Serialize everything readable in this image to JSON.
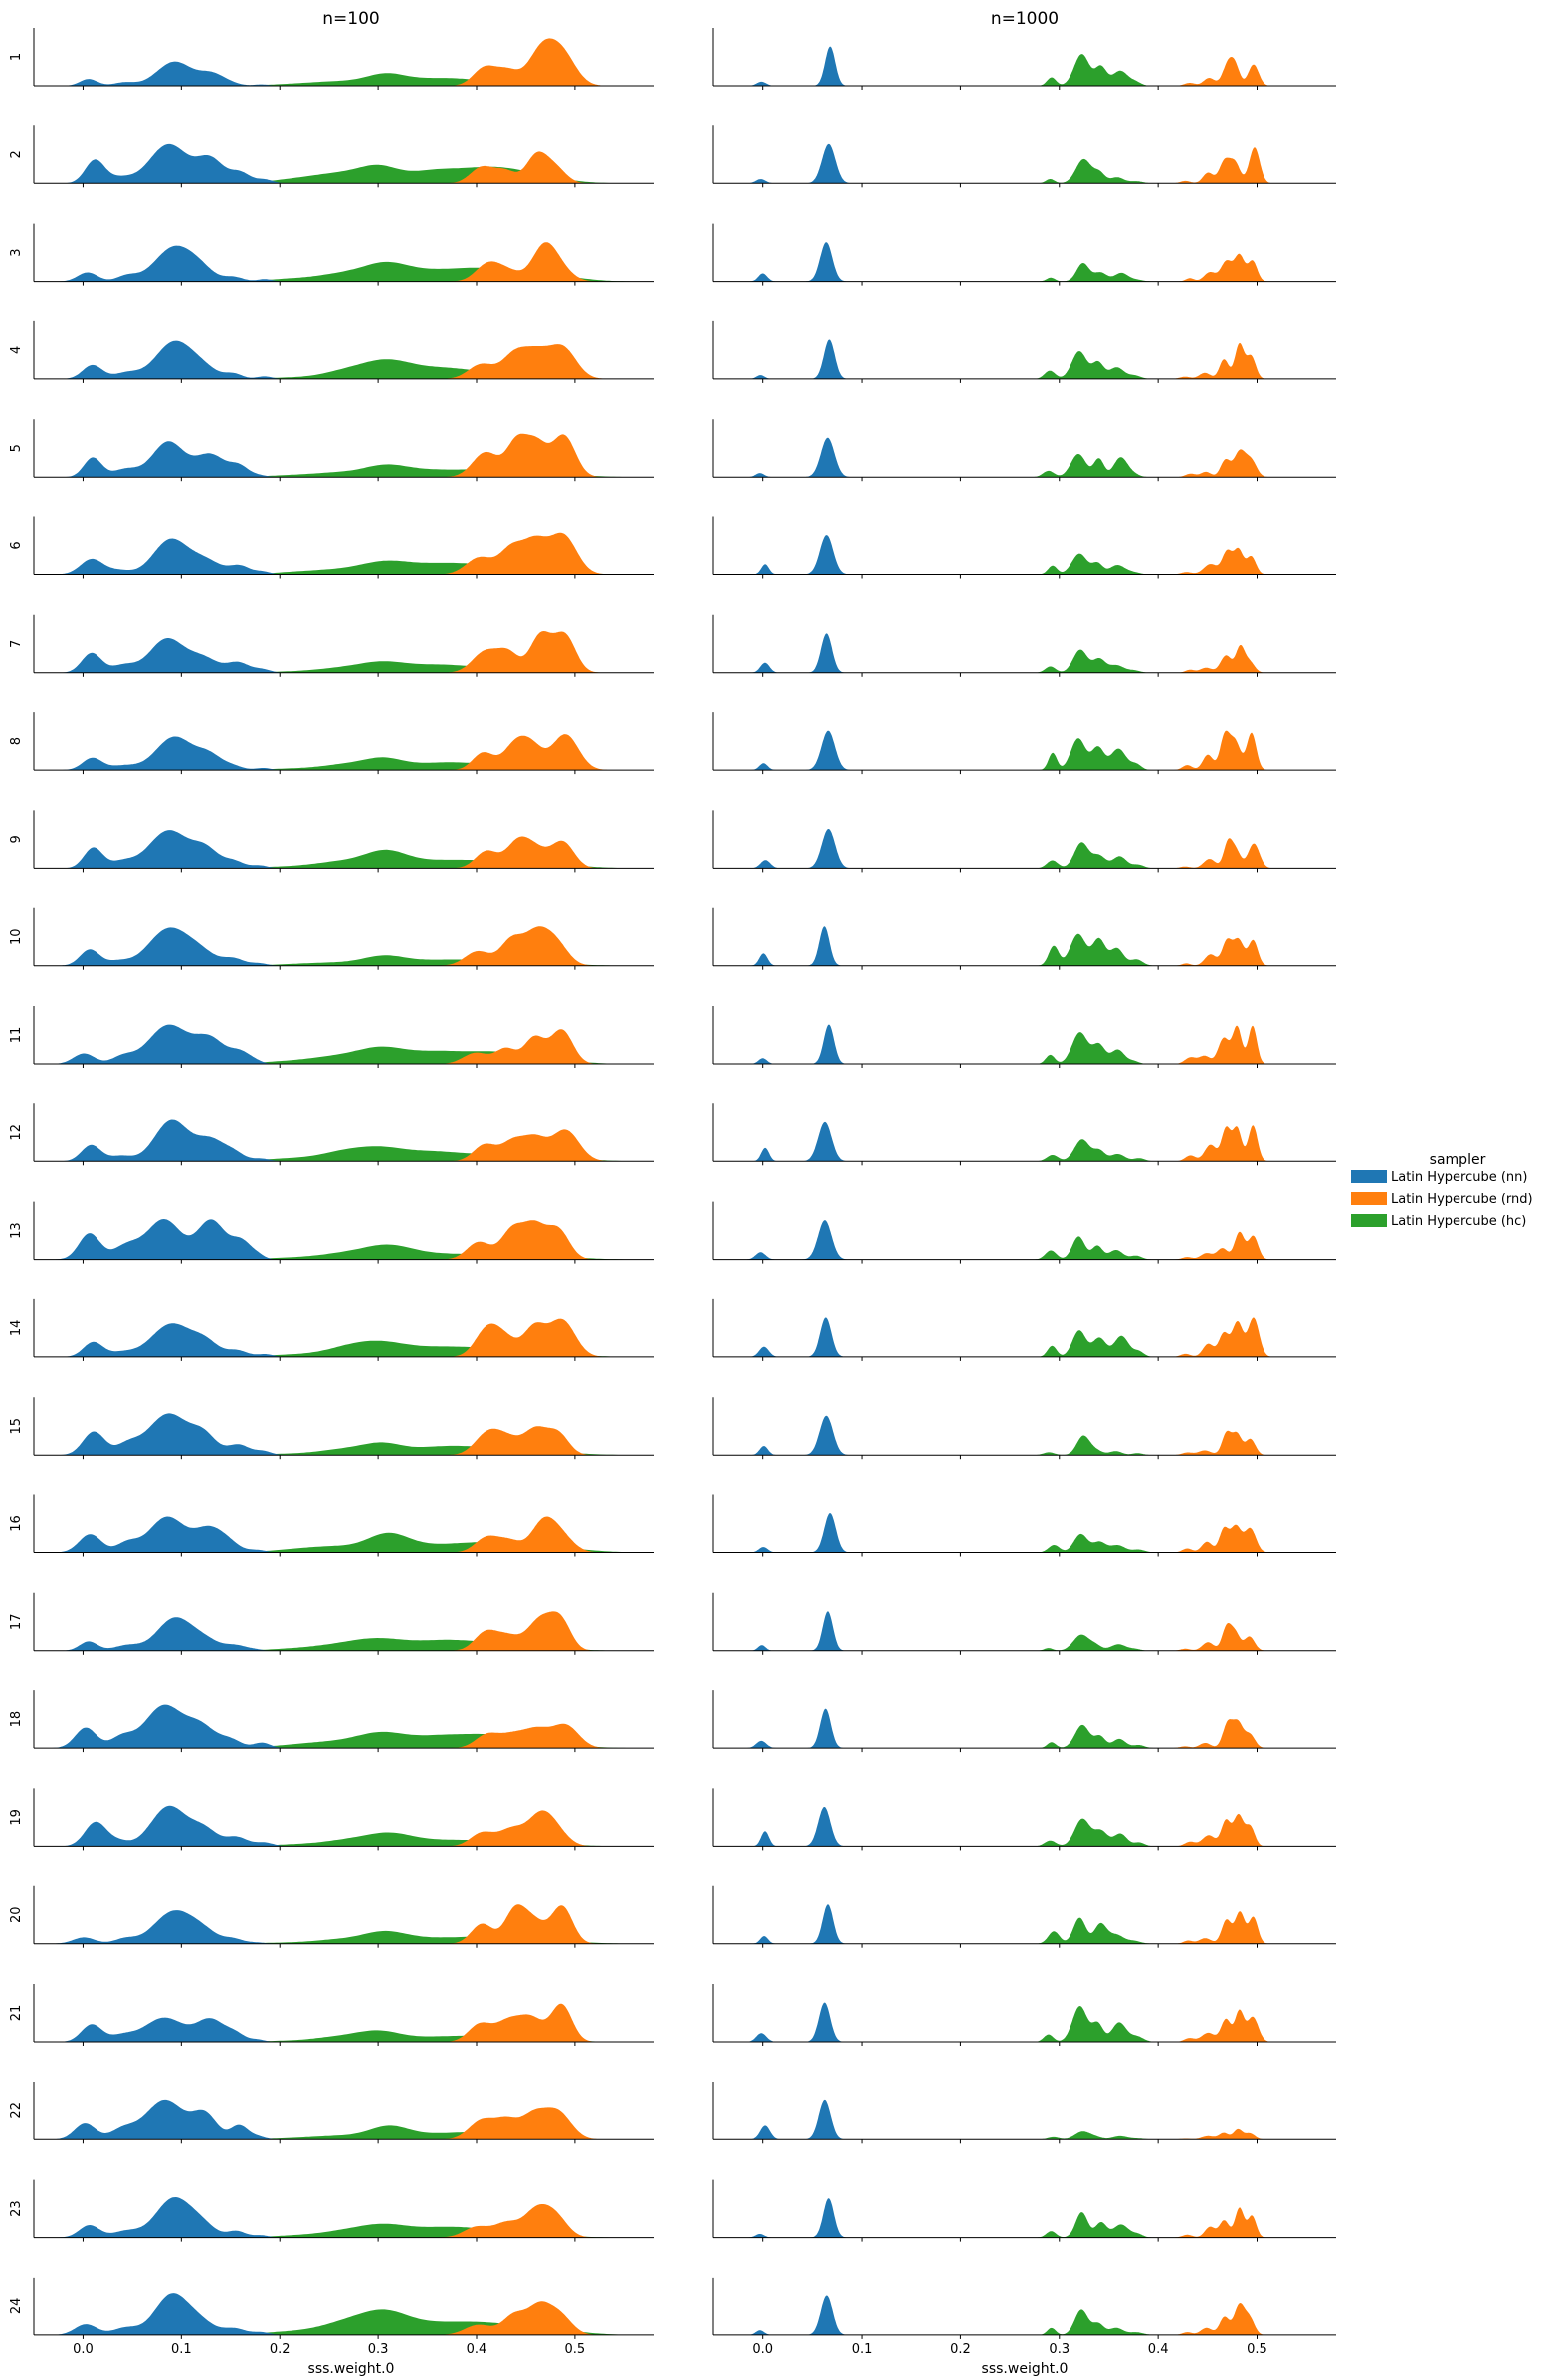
{
  "chart_data": {
    "type": "area",
    "subtype": "ridgeline-kde-facet-grid",
    "column_titles": [
      "n=100",
      "n=1000"
    ],
    "row_labels": [
      "1",
      "2",
      "3",
      "4",
      "5",
      "6",
      "7",
      "8",
      "9",
      "10",
      "11",
      "12",
      "13",
      "14",
      "15",
      "16",
      "17",
      "18",
      "19",
      "20",
      "21",
      "22",
      "23",
      "24"
    ],
    "xlabel": "sss.weight.0",
    "xlim": [
      -0.05,
      0.58
    ],
    "xticks": [
      0.0,
      0.1,
      0.2,
      0.3,
      0.4,
      0.5
    ],
    "xtick_labels": [
      "0.0",
      "0.1",
      "0.2",
      "0.3",
      "0.4",
      "0.5"
    ],
    "legend": {
      "title": "sampler",
      "placement": "center-right",
      "entries": [
        {
          "name": "Latin Hypercube (nn)",
          "color": "#1f77b4"
        },
        {
          "name": "Latin Hypercube (rnd)",
          "color": "#ff7f0e"
        },
        {
          "name": "Latin Hypercube (hc)",
          "color": "#2ca02c"
        }
      ]
    },
    "series_colors": {
      "nn": "#1f77b4",
      "rnd": "#ff7f0e",
      "hc": "#2ca02c"
    },
    "draw_order": [
      "hc",
      "rnd",
      "nn"
    ],
    "series_templates": {
      "n100": {
        "nn": [
          {
            "mu": 0.007,
            "sd": 0.01,
            "h": 0.3
          },
          {
            "mu": 0.04,
            "sd": 0.012,
            "h": 0.12
          },
          {
            "mu": 0.088,
            "sd": 0.018,
            "h": 0.72
          },
          {
            "mu": 0.125,
            "sd": 0.014,
            "h": 0.32
          },
          {
            "mu": 0.155,
            "sd": 0.01,
            "h": 0.14
          },
          {
            "mu": 0.18,
            "sd": 0.008,
            "h": 0.05
          }
        ],
        "rnd": [
          {
            "mu": 0.405,
            "sd": 0.012,
            "h": 0.35
          },
          {
            "mu": 0.435,
            "sd": 0.012,
            "h": 0.45
          },
          {
            "mu": 0.462,
            "sd": 0.012,
            "h": 0.65
          },
          {
            "mu": 0.485,
            "sd": 0.012,
            "h": 0.6
          }
        ],
        "hc": [
          {
            "mu": 0.215,
            "sd": 0.03,
            "h": 0.06
          },
          {
            "mu": 0.265,
            "sd": 0.025,
            "h": 0.18
          },
          {
            "mu": 0.305,
            "sd": 0.022,
            "h": 0.36
          },
          {
            "mu": 0.355,
            "sd": 0.03,
            "h": 0.22
          },
          {
            "mu": 0.41,
            "sd": 0.035,
            "h": 0.22
          },
          {
            "mu": 0.47,
            "sd": 0.03,
            "h": 0.1
          }
        ]
      },
      "n1000": {
        "nn": [
          {
            "mu": 0.0,
            "sd": 0.0045,
            "h": 0.16
          },
          {
            "mu": 0.065,
            "sd": 0.006,
            "h": 0.9
          }
        ],
        "rnd": [
          {
            "mu": 0.43,
            "sd": 0.005,
            "h": 0.08
          },
          {
            "mu": 0.45,
            "sd": 0.006,
            "h": 0.22
          },
          {
            "mu": 0.468,
            "sd": 0.005,
            "h": 0.55
          },
          {
            "mu": 0.48,
            "sd": 0.005,
            "h": 0.62
          },
          {
            "mu": 0.495,
            "sd": 0.005,
            "h": 0.6
          }
        ],
        "hc": [
          {
            "mu": 0.292,
            "sd": 0.005,
            "h": 0.2
          },
          {
            "mu": 0.322,
            "sd": 0.007,
            "h": 0.7
          },
          {
            "mu": 0.34,
            "sd": 0.006,
            "h": 0.35
          },
          {
            "mu": 0.36,
            "sd": 0.007,
            "h": 0.3
          },
          {
            "mu": 0.378,
            "sd": 0.006,
            "h": 0.08
          }
        ]
      }
    },
    "per_row_peaks": {
      "n100": {
        "nn": [
          0.42,
          0.68,
          0.62,
          0.66,
          0.62,
          0.62,
          0.6,
          0.58,
          0.66,
          0.66,
          0.68,
          0.72,
          0.7,
          0.58,
          0.72,
          0.62,
          0.58,
          0.75,
          0.7,
          0.58,
          0.42,
          0.68,
          0.7,
          0.72
        ],
        "rnd": [
          0.82,
          0.55,
          0.68,
          0.6,
          0.75,
          0.72,
          0.72,
          0.62,
          0.55,
          0.68,
          0.6,
          0.55,
          0.68,
          0.66,
          0.5,
          0.62,
          0.68,
          0.42,
          0.62,
          0.68,
          0.66,
          0.55,
          0.58,
          0.58
        ],
        "hc": [
          0.22,
          0.32,
          0.34,
          0.34,
          0.22,
          0.24,
          0.2,
          0.22,
          0.32,
          0.18,
          0.3,
          0.26,
          0.26,
          0.28,
          0.22,
          0.34,
          0.22,
          0.28,
          0.24,
          0.22,
          0.2,
          0.24,
          0.24,
          0.44
        ]
      },
      "n1000": {
        "nn": [
          0.68,
          0.68,
          0.68,
          0.68,
          0.68,
          0.68,
          0.68,
          0.68,
          0.68,
          0.68,
          0.68,
          0.68,
          0.68,
          0.68,
          0.68,
          0.68,
          0.68,
          0.68,
          0.68,
          0.68,
          0.68,
          0.68,
          0.68,
          0.68
        ],
        "rnd": [
          0.5,
          0.62,
          0.48,
          0.62,
          0.48,
          0.46,
          0.48,
          0.68,
          0.52,
          0.48,
          0.66,
          0.62,
          0.48,
          0.68,
          0.42,
          0.48,
          0.48,
          0.5,
          0.56,
          0.56,
          0.56,
          0.18,
          0.52,
          0.55
        ],
        "hc": [
          0.55,
          0.42,
          0.32,
          0.48,
          0.4,
          0.36,
          0.4,
          0.55,
          0.45,
          0.55,
          0.55,
          0.38,
          0.4,
          0.46,
          0.34,
          0.32,
          0.28,
          0.4,
          0.48,
          0.45,
          0.62,
          0.14,
          0.44,
          0.44
        ]
      }
    }
  }
}
